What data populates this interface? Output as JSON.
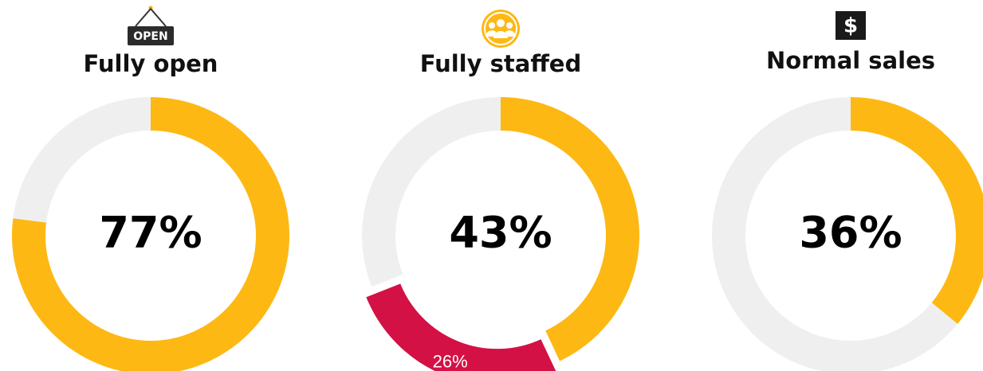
{
  "chart_data": [
    {
      "type": "donut",
      "icon_text": "OPEN",
      "title": "Fully open",
      "values": [
        77,
        23
      ],
      "value_labels": [
        "77%",
        null
      ],
      "colors": [
        "#fdb813",
        "#efefef"
      ],
      "explode": [
        false,
        false
      ]
    },
    {
      "type": "donut",
      "title": "Fully staffed",
      "values": [
        43,
        26,
        31
      ],
      "value_labels": [
        "43%",
        "26%",
        null
      ],
      "colors": [
        "#fdb813",
        "#d31145",
        "#efefef"
      ],
      "explode": [
        false,
        true,
        false
      ]
    },
    {
      "type": "donut",
      "icon_text": "$",
      "title": "Normal sales",
      "values": [
        36,
        64
      ],
      "value_labels": [
        "36%",
        null
      ],
      "colors": [
        "#fdb813",
        "#efefef"
      ],
      "explode": [
        false,
        false
      ]
    }
  ]
}
